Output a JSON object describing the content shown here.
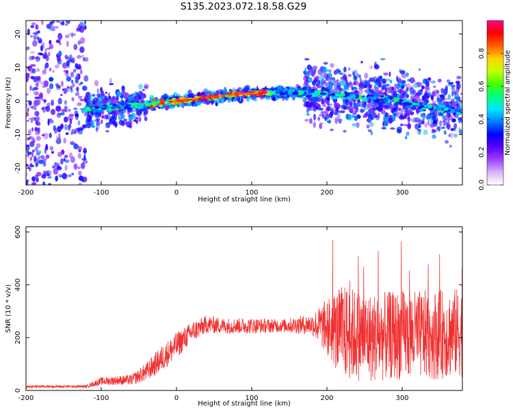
{
  "title": "S135.2023.072.18.58.G29",
  "chart_data": [
    {
      "type": "heatmap",
      "xlabel": "Height of straight line (km)",
      "ylabel": "Frequency (Hz)",
      "xlim": [
        -200,
        380
      ],
      "ylim": [
        -25,
        24
      ],
      "xticks": [
        "-200",
        "-100",
        "0",
        "100",
        "200",
        "300"
      ],
      "yticks": [
        "20",
        "10",
        "0",
        "-10",
        "-20"
      ],
      "colorbar": {
        "label": "Normalized spectral amplitude",
        "range": [
          0,
          1
        ],
        "ticks": [
          "0.0",
          "0.2",
          "0.4",
          "0.6",
          "0.8"
        ],
        "colors": [
          "#ffffff",
          "#d8b4f8",
          "#9c40ff",
          "#5a00ff",
          "#0000ff",
          "#0080ff",
          "#00e5ff",
          "#00ff80",
          "#40ff00",
          "#c8ff00",
          "#ffd000",
          "#ff6000",
          "#ff0000",
          "#ff0080"
        ]
      },
      "trend": [
        {
          "x": -120,
          "y": -2.5
        },
        {
          "x": -80,
          "y": -2.0
        },
        {
          "x": -40,
          "y": -1.0
        },
        {
          "x": 0,
          "y": 0.0
        },
        {
          "x": 40,
          "y": 1.0
        },
        {
          "x": 80,
          "y": 2.0
        },
        {
          "x": 120,
          "y": 2.5
        },
        {
          "x": 160,
          "y": 2.5
        },
        {
          "x": 200,
          "y": 2.0
        },
        {
          "x": 250,
          "y": 1.0
        },
        {
          "x": 300,
          "y": 0.0
        },
        {
          "x": 340,
          "y": -2.0
        },
        {
          "x": 380,
          "y": -3.0
        }
      ]
    },
    {
      "type": "line",
      "xlabel": "Height of straight line (km)",
      "ylabel": "SNR (10 * v/v)",
      "xlim": [
        -200,
        380
      ],
      "ylim": [
        0,
        620
      ],
      "xticks": [
        "-200",
        "-100",
        "0",
        "100",
        "200",
        "300"
      ],
      "yticks": [
        "600",
        "400",
        "200",
        "0"
      ],
      "color": "#f03030",
      "envelope": [
        {
          "x": -200,
          "mean": 15,
          "amp": 5
        },
        {
          "x": -120,
          "mean": 15,
          "amp": 5
        },
        {
          "x": -100,
          "mean": 35,
          "amp": 15
        },
        {
          "x": -60,
          "mean": 40,
          "amp": 20
        },
        {
          "x": -40,
          "mean": 70,
          "amp": 35
        },
        {
          "x": -20,
          "mean": 120,
          "amp": 50
        },
        {
          "x": 0,
          "mean": 170,
          "amp": 50
        },
        {
          "x": 20,
          "mean": 220,
          "amp": 40
        },
        {
          "x": 40,
          "mean": 250,
          "amp": 35
        },
        {
          "x": 60,
          "mean": 245,
          "amp": 30
        },
        {
          "x": 80,
          "mean": 245,
          "amp": 30
        },
        {
          "x": 100,
          "mean": 245,
          "amp": 30
        },
        {
          "x": 140,
          "mean": 245,
          "amp": 25
        },
        {
          "x": 180,
          "mean": 250,
          "amp": 40
        },
        {
          "x": 200,
          "mean": 240,
          "amp": 110
        },
        {
          "x": 220,
          "mean": 220,
          "amp": 180
        },
        {
          "x": 260,
          "mean": 200,
          "amp": 170
        },
        {
          "x": 300,
          "mean": 210,
          "amp": 170
        },
        {
          "x": 340,
          "mean": 210,
          "amp": 170
        },
        {
          "x": 380,
          "mean": 220,
          "amp": 170
        }
      ]
    }
  ]
}
